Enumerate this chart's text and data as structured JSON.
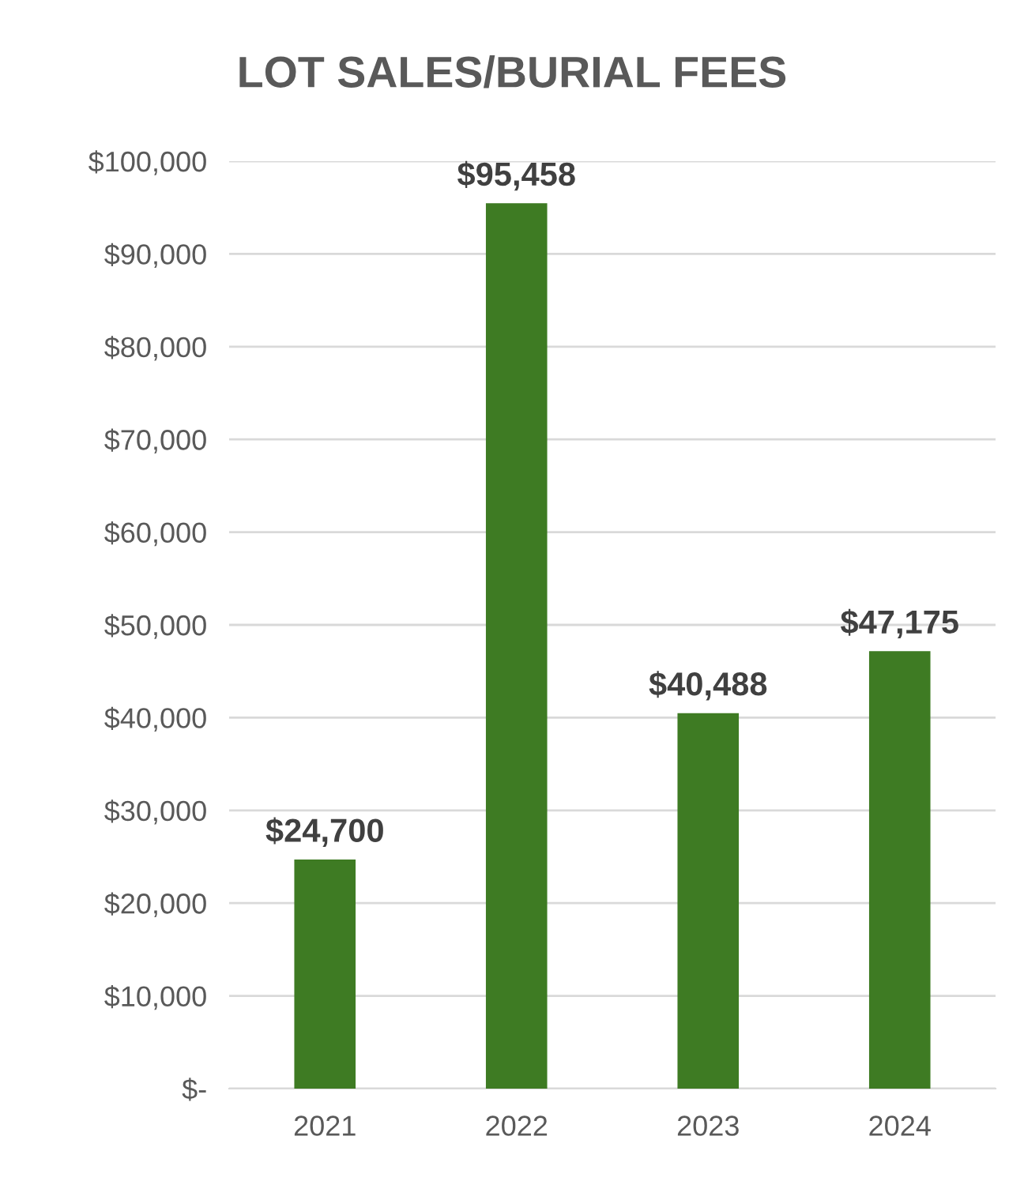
{
  "chart_data": {
    "type": "bar",
    "title": "LOT SALES/BURIAL FEES",
    "categories": [
      "2021",
      "2022",
      "2023",
      "2024"
    ],
    "values": [
      24700,
      95458,
      40488,
      47175
    ],
    "color": "#3e7b23",
    "value_labels": [
      "$24,700",
      "$95,458",
      "$40,488",
      "$47,175"
    ],
    "ylim": [
      0,
      100000
    ],
    "yticks": [
      {
        "value": 0,
        "label": "$-"
      },
      {
        "value": 10000,
        "label": "$10,000"
      },
      {
        "value": 20000,
        "label": "$20,000"
      },
      {
        "value": 30000,
        "label": "$30,000"
      },
      {
        "value": 40000,
        "label": "$40,000"
      },
      {
        "value": 50000,
        "label": "$50,000"
      },
      {
        "value": 60000,
        "label": "$60,000"
      },
      {
        "value": 70000,
        "label": "$70,000"
      },
      {
        "value": 80000,
        "label": "$80,000"
      },
      {
        "value": 90000,
        "label": "$90,000"
      },
      {
        "value": 100000,
        "label": "$100,000"
      }
    ],
    "grid": "y",
    "legend": false
  }
}
